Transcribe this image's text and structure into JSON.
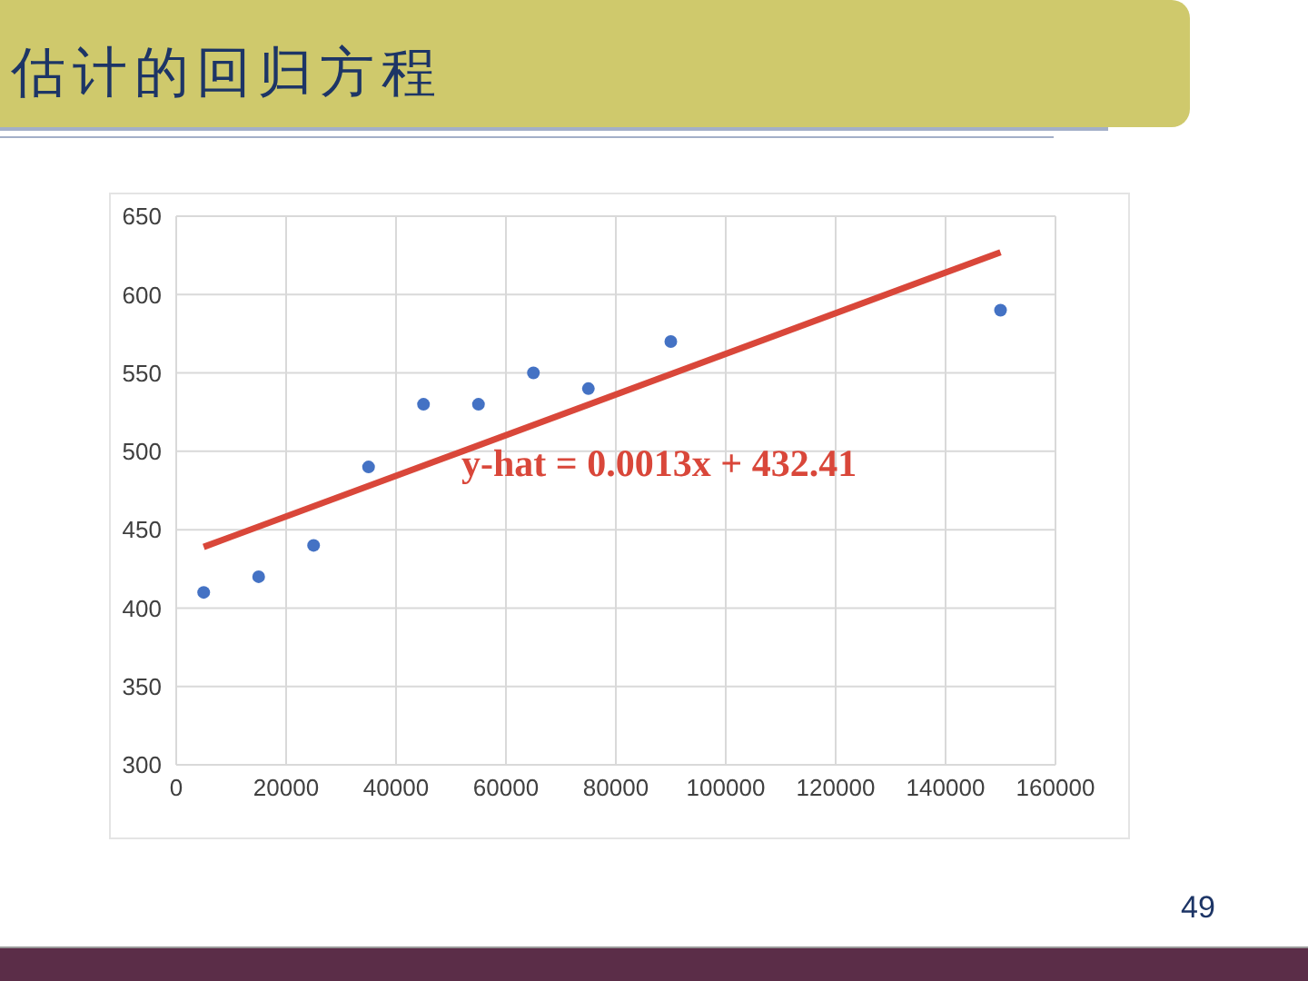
{
  "chart_data": {
    "type": "scatter",
    "title": "估计的回归方程",
    "x": [
      5000,
      15000,
      25000,
      35000,
      45000,
      55000,
      65000,
      75000,
      90000,
      150000
    ],
    "series": [
      {
        "color": "#4472c4",
        "marker": "circle",
        "values": [
          410,
          420,
          440,
          490,
          530,
          530,
          550,
          540,
          570,
          590
        ]
      },
      {
        "type": "line",
        "color": "#d9473a",
        "marker": "none",
        "line_style": "solid",
        "x": [
          5000,
          150000
        ],
        "values": [
          439,
          627
        ]
      }
    ],
    "xlim": [
      0,
      160000
    ],
    "xticks": [
      0,
      20000,
      40000,
      60000,
      80000,
      100000,
      120000,
      140000,
      160000
    ],
    "ylim": [
      300,
      650
    ],
    "yticks": [
      300,
      350,
      400,
      450,
      500,
      550,
      600,
      650
    ],
    "grid": true,
    "legend": false,
    "annotations": [
      "y-hat = 0.0013x + 432.41",
      "49"
    ]
  }
}
